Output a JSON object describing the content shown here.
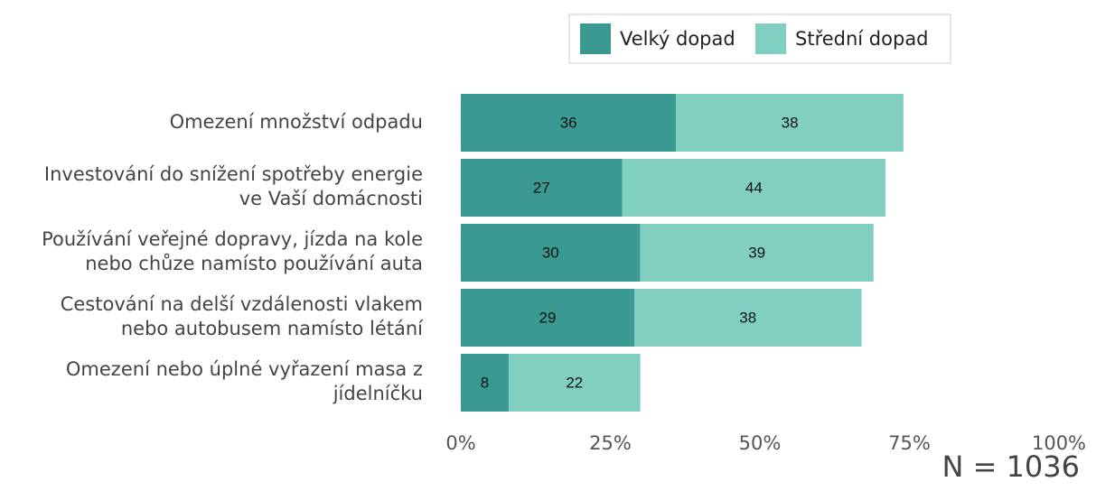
{
  "chart_data": {
    "type": "bar",
    "orientation": "horizontal",
    "stacked": true,
    "categories": [
      "Omezení množství odpadu",
      "Investování do snížení spotřeby energie\nve Vaší domácnosti",
      "Používání veřejné dopravy, jízda na kole\nnebo chůze namísto používání auta",
      "Cestování na delší vzdálenosti vlakem\nnebo autobusem namísto létání",
      "Omezení nebo úplné vyřazení masa z\njídelníčku"
    ],
    "series": [
      {
        "name": "Velký dopad",
        "color": "#3a9990",
        "values": [
          36,
          27,
          30,
          29,
          8
        ]
      },
      {
        "name": "Střední dopad",
        "color": "#80cfc1",
        "values": [
          38,
          44,
          39,
          38,
          22
        ]
      }
    ],
    "xlim": [
      0,
      100
    ],
    "xticks": [
      {
        "value": 0,
        "label": "0%"
      },
      {
        "value": 25,
        "label": "25%"
      },
      {
        "value": 50,
        "label": "50%"
      },
      {
        "value": 75,
        "label": "75%"
      },
      {
        "value": 100,
        "label": "100%"
      }
    ],
    "legend": "top",
    "annotation": "N = 1036"
  }
}
